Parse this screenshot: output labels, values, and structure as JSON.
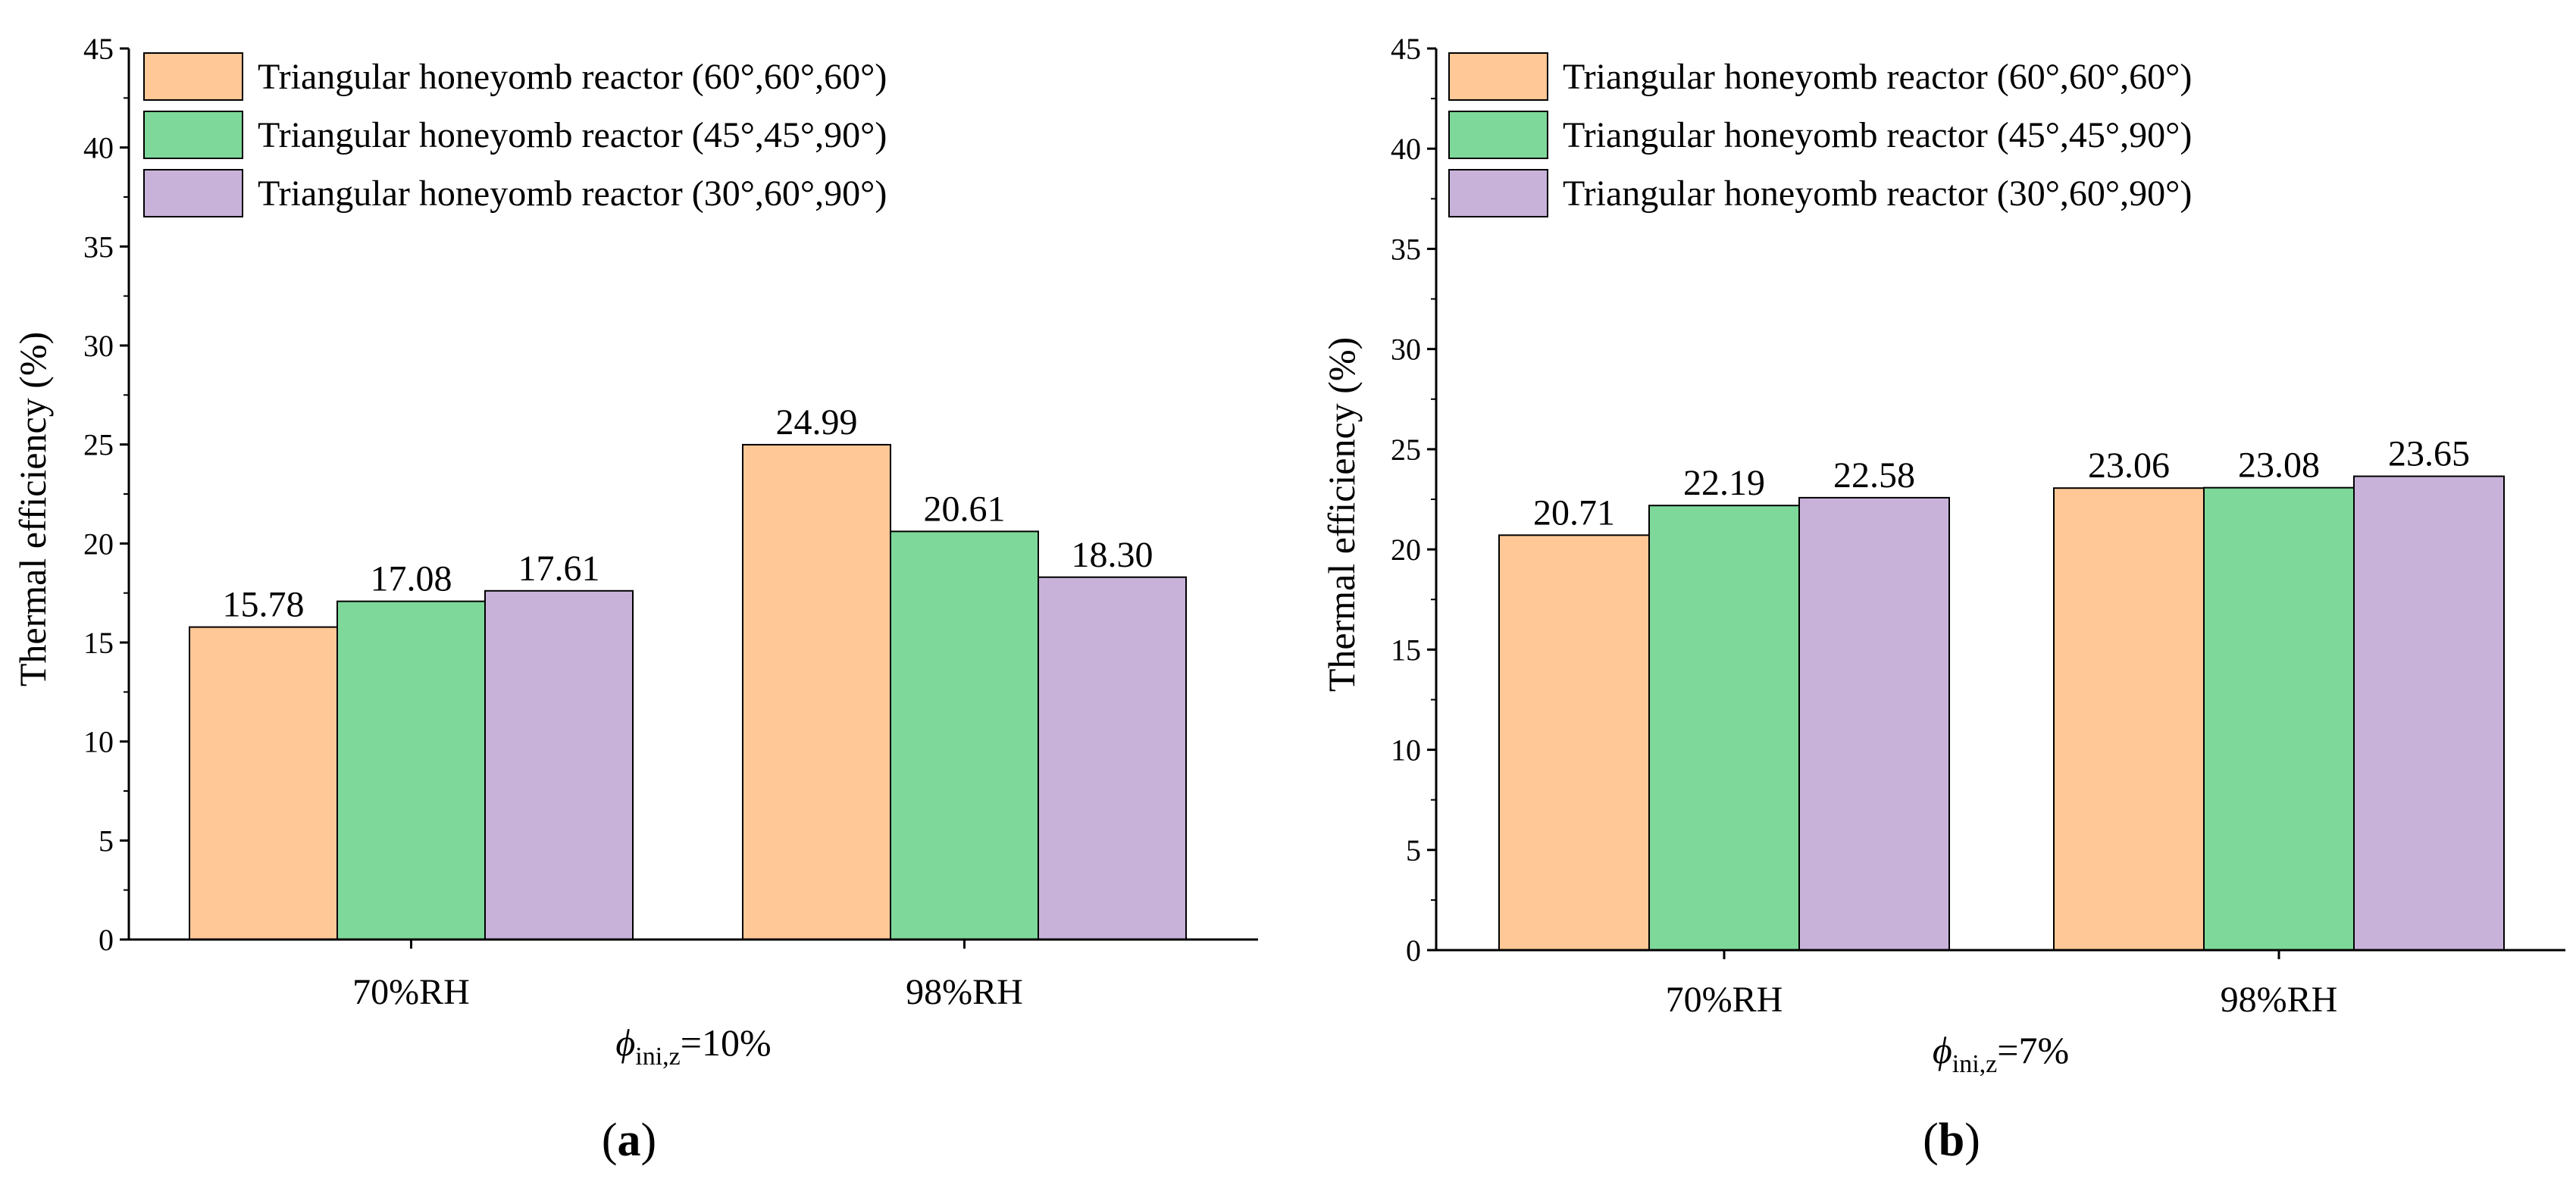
{
  "chart_data": [
    {
      "panel": "a",
      "type": "bar",
      "categories": [
        "70%RH",
        "98%RH"
      ],
      "series": [
        {
          "name": "Triangular honeyomb reactor (60°,60°,60°)",
          "values": [
            15.78,
            24.99
          ],
          "labels": [
            "15.78",
            "24.99"
          ],
          "color": "#FFC896"
        },
        {
          "name": "Triangular honeyomb reactor (45°,45°,90°)",
          "values": [
            17.08,
            20.61
          ],
          "labels": [
            "17.08",
            "20.61"
          ],
          "color": "#7ED89A"
        },
        {
          "name": "Triangular honeyomb reactor (30°,60°,90°)",
          "values": [
            17.61,
            18.3
          ],
          "labels": [
            "17.61",
            "18.30"
          ],
          "color": "#C8B2DA"
        }
      ],
      "ylabel": "Thermal efficiency (%)",
      "xlabel": {
        "symbol": "ϕ",
        "sub": "ini,z",
        "rest": "=10%"
      },
      "ylim": [
        0,
        45
      ],
      "yticks": [
        "0",
        "5",
        "10",
        "15",
        "20",
        "25",
        "30",
        "35",
        "40",
        "45"
      ],
      "panel_label": "a",
      "legend": "top-left",
      "grid": false
    },
    {
      "panel": "b",
      "type": "bar",
      "categories": [
        "70%RH",
        "98%RH"
      ],
      "series": [
        {
          "name": "Triangular honeyomb reactor (60°,60°,60°)",
          "values": [
            20.71,
            23.06
          ],
          "labels": [
            "20.71",
            "23.06"
          ],
          "color": "#FFC896"
        },
        {
          "name": "Triangular honeyomb reactor (45°,45°,90°)",
          "values": [
            22.19,
            23.08
          ],
          "labels": [
            "22.19",
            "23.08"
          ],
          "color": "#7ED89A"
        },
        {
          "name": "Triangular honeyomb reactor (30°,60°,90°)",
          "values": [
            22.58,
            23.65
          ],
          "labels": [
            "22.58",
            "23.65"
          ],
          "color": "#C8B2DA"
        }
      ],
      "ylabel": "Thermal efficiency (%)",
      "xlabel": {
        "symbol": "ϕ",
        "sub": "ini,z",
        "rest": "=7%"
      },
      "ylim": [
        0,
        45
      ],
      "yticks": [
        "0",
        "5",
        "10",
        "15",
        "20",
        "25",
        "30",
        "35",
        "40",
        "45"
      ],
      "panel_label": "b",
      "legend": "top-left",
      "grid": false
    }
  ]
}
